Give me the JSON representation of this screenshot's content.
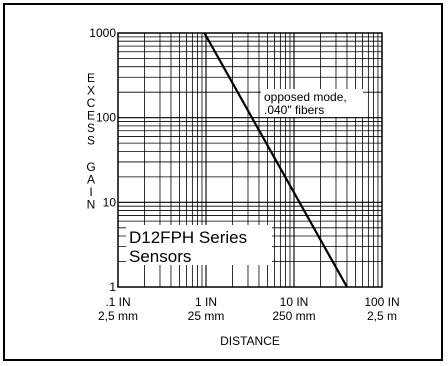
{
  "chart_data": {
    "type": "line",
    "title": "",
    "xlabel": "DISTANCE",
    "ylabel": "EXCESS GAIN",
    "x_scale": "log",
    "y_scale": "log",
    "xlim_in": [
      0.1,
      100
    ],
    "ylim": [
      1,
      1000
    ],
    "grid": true,
    "x_ticks": [
      {
        "value": 0.1,
        "label_top": ".1 IN",
        "label_bottom": "2,5 mm"
      },
      {
        "value": 1,
        "label_top": "1 IN",
        "label_bottom": "25 mm"
      },
      {
        "value": 10,
        "label_top": "10 IN",
        "label_bottom": "250 mm"
      },
      {
        "value": 100,
        "label_top": "100 IN",
        "label_bottom": "2,5 m"
      }
    ],
    "y_ticks": [
      {
        "value": 1,
        "label": "1"
      },
      {
        "value": 10,
        "label": "10"
      },
      {
        "value": 100,
        "label": "100"
      },
      {
        "value": 1000,
        "label": "1000"
      }
    ],
    "series": [
      {
        "x": [
          0.96,
          40
        ],
        "y": [
          1000,
          1
        ],
        "annotation": [
          "opposed mode,",
          ".040\" fibers"
        ]
      }
    ],
    "caption": [
      "D12FPH Series",
      "Sensors"
    ]
  }
}
